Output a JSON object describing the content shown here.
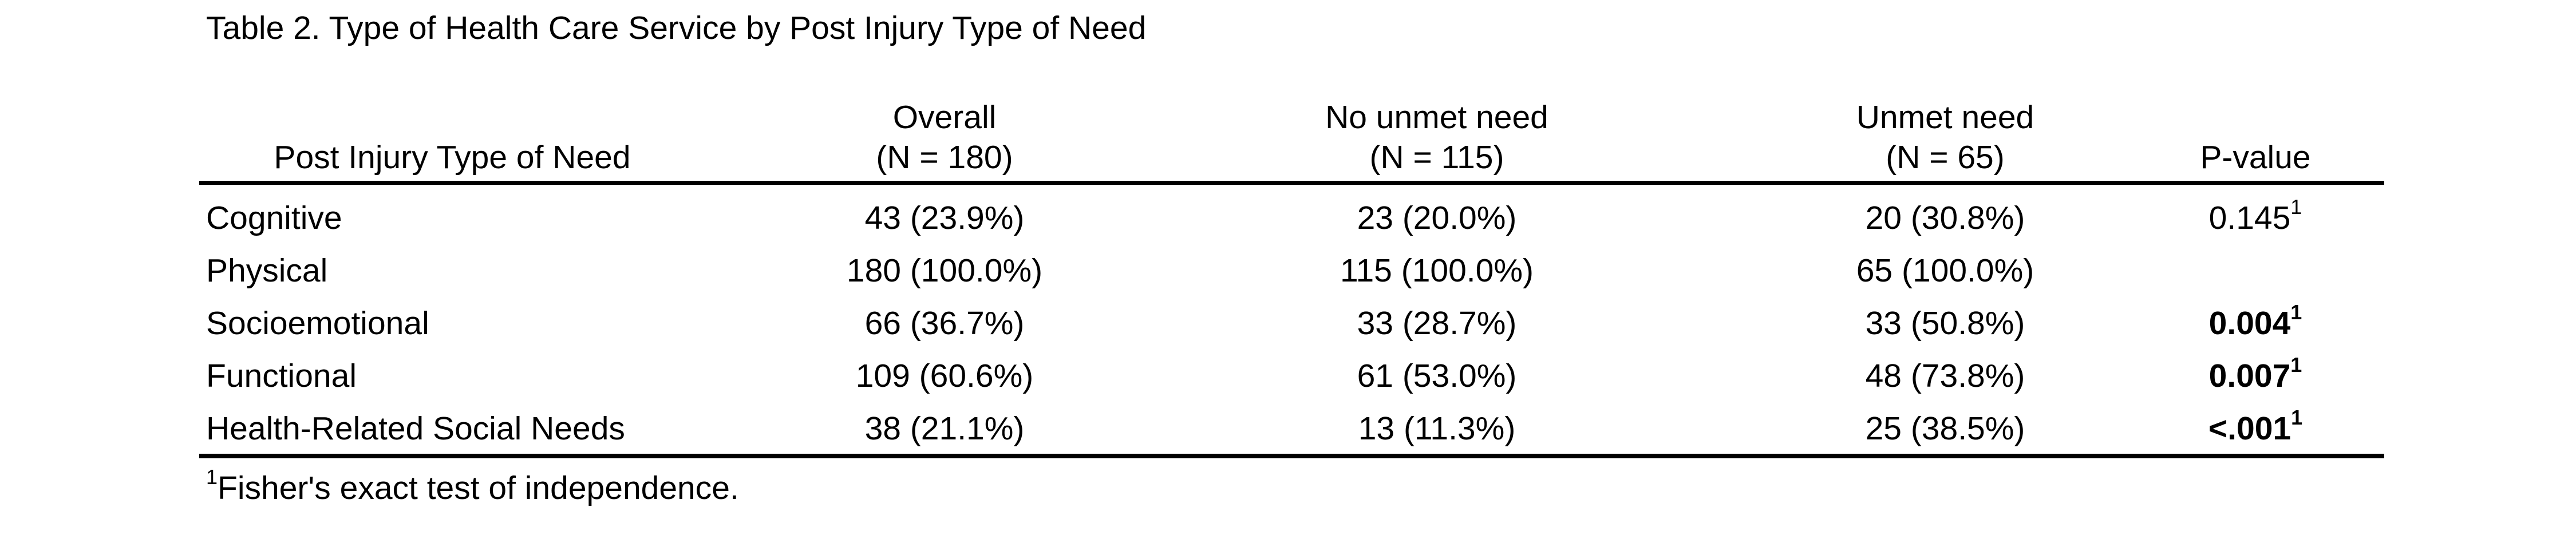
{
  "table": {
    "caption": "Table 2. Type of Health Care Service by Post Injury Type of Need",
    "headers": {
      "need_type": "Post Injury Type of Need",
      "overall_title": "Overall",
      "overall_n": "(N = 180)",
      "no_unmet_title": "No unmet need",
      "no_unmet_n": "(N = 115)",
      "unmet_title": "Unmet need",
      "unmet_n": "(N = 65)",
      "p_value": "P-value"
    },
    "rows": [
      {
        "label": "Cognitive",
        "overall": "43 (23.9%)",
        "no_unmet": "23 (20.0%)",
        "unmet": "20 (30.8%)",
        "p_value": "0.145",
        "p_sup": "1",
        "p_bold": false
      },
      {
        "label": "Physical",
        "overall": "180 (100.0%)",
        "no_unmet": "115 (100.0%)",
        "unmet": "65 (100.0%)",
        "p_value": "",
        "p_sup": "",
        "p_bold": false
      },
      {
        "label": "Socioemotional",
        "overall": "66 (36.7%)",
        "no_unmet": "33 (28.7%)",
        "unmet": "33 (50.8%)",
        "p_value": "0.004",
        "p_sup": "1",
        "p_bold": true
      },
      {
        "label": "Functional",
        "overall": "109 (60.6%)",
        "no_unmet": "61 (53.0%)",
        "unmet": "48 (73.8%)",
        "p_value": "0.007",
        "p_sup": "1",
        "p_bold": true
      },
      {
        "label": "Health-Related Social Needs",
        "overall": "38 (21.1%)",
        "no_unmet": "13 (11.3%)",
        "unmet": "25 (38.5%)",
        "p_value": "<.001",
        "p_sup": "1",
        "p_bold": true
      }
    ],
    "footnote_mark": "1",
    "footnote_text": "Fisher's exact test of independence."
  }
}
